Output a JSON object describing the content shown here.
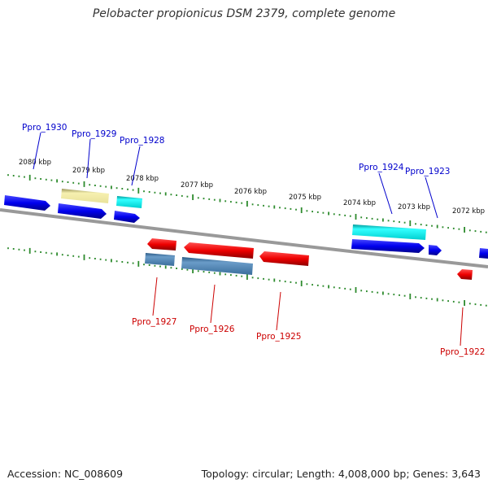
{
  "title": "Pelobacter propionicus DSM 2379, complete genome",
  "footer": {
    "accession": "Accession: NC_008609",
    "summary": "Topology: circular; Length: 4,008,000 bp; Genes: 3,643"
  },
  "colors": {
    "backbone": "#888888",
    "tick": "#2e8b2e",
    "blue_gene": "#0000ee",
    "red_gene": "#ee0000",
    "cyan_gene": "#00e5e5",
    "khaki_gene": "#eee8a0",
    "steelblue_gene": "#4682b4",
    "label_blue": "#0000cc",
    "label_red": "#cc0000"
  },
  "kbp_labels": [
    "2080 kbp",
    "2079 kbp",
    "2078 kbp",
    "2077 kbp",
    "2076 kbp",
    "2075 kbp",
    "2074 kbp",
    "2073 kbp",
    "2072 kbp"
  ],
  "gene_labels": {
    "top": [
      "Ppro_1930",
      "Ppro_1929",
      "Ppro_1928",
      "Ppro_1924",
      "Ppro_1923"
    ],
    "bottom": [
      "Ppro_1927",
      "Ppro_1926",
      "Ppro_1925",
      "Ppro_1922"
    ]
  }
}
